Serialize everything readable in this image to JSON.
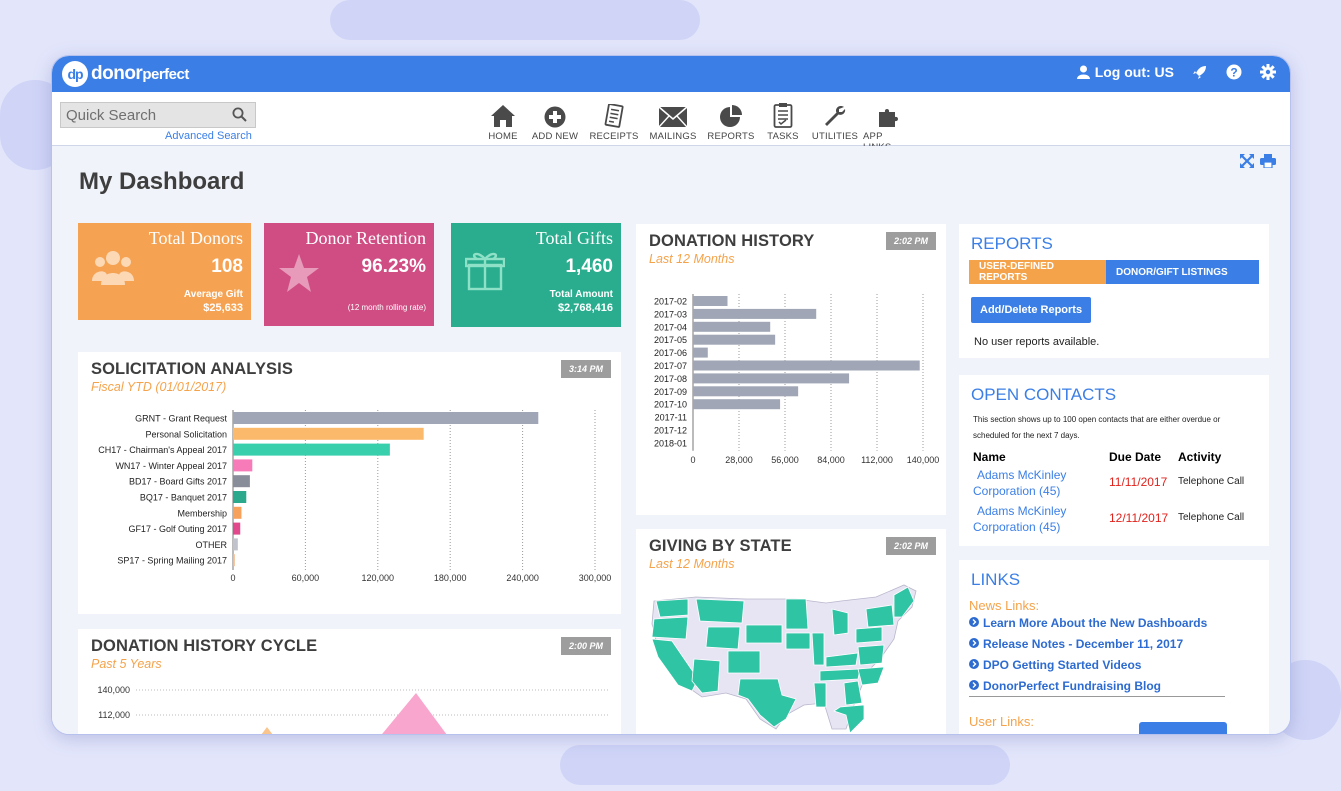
{
  "app": {
    "logo_letters": "dp",
    "logo_text_a": "donor",
    "logo_text_b": "perfect"
  },
  "topbar": {
    "logout_label": "Log out: US",
    "icons": [
      "user-icon",
      "rocket-icon",
      "help-icon",
      "gear-icon"
    ]
  },
  "search": {
    "placeholder": "Quick Search",
    "advanced_label": "Advanced Search"
  },
  "nav": {
    "items": [
      {
        "label": "HOME",
        "icon": "home-icon"
      },
      {
        "label": "ADD NEW",
        "icon": "plus-circle-icon"
      },
      {
        "label": "RECEIPTS",
        "icon": "receipt-icon"
      },
      {
        "label": "MAILINGS",
        "icon": "envelope-icon"
      },
      {
        "label": "REPORTS",
        "icon": "pie-chart-icon"
      },
      {
        "label": "TASKS",
        "icon": "clipboard-icon"
      },
      {
        "label": "UTILITIES",
        "icon": "wrench-icon"
      },
      {
        "label": "APP LINKS",
        "icon": "puzzle-icon"
      }
    ]
  },
  "page": {
    "title": "My Dashboard"
  },
  "stats": {
    "donors": {
      "title": "Total Donors",
      "value": "108",
      "sub1": "Average Gift",
      "sub2": "$25,633",
      "color": "#f5a252"
    },
    "retention": {
      "title": "Donor Retention",
      "value": "96.23%",
      "sub2": "(12 month rolling rate)",
      "color": "#cf4d83"
    },
    "gifts": {
      "title": "Total Gifts",
      "value": "1,460",
      "sub1": "Total Amount",
      "sub2": "$2,768,416",
      "color": "#2aad8e"
    }
  },
  "solicitation": {
    "title": "SOLICITATION ANALYSIS",
    "subtitle": "Fiscal YTD (01/01/2017)",
    "time": "3:14 PM"
  },
  "donation_history": {
    "title": "DONATION HISTORY",
    "subtitle": "Last 12 Months",
    "time": "2:02 PM"
  },
  "giving_by_state": {
    "title": "GIVING BY STATE",
    "subtitle": "Last 12 Months",
    "time": "2:02 PM"
  },
  "history_cycle": {
    "title": "DONATION HISTORY CYCLE",
    "subtitle": "Past 5 Years",
    "time": "2:00 PM",
    "y_ticks": [
      "140,000",
      "112,000"
    ]
  },
  "reports": {
    "title": "REPORTS",
    "tab1": "USER-DEFINED REPORTS",
    "tab2": "DONOR/GIFT LISTINGS",
    "button": "Add/Delete Reports",
    "empty": "No user reports available."
  },
  "contacts": {
    "title": "OPEN CONTACTS",
    "desc1": "This section shows up to 100 open contacts that are either overdue or",
    "desc2": "scheduled for the next 7 days.",
    "col_name": "Name",
    "col_due": "Due Date",
    "col_activity": "Activity",
    "rows": [
      {
        "name1": "Adams McKinley",
        "name2": "Corporation (45)",
        "due": "11/11/2017",
        "activity": "Telephone Call"
      },
      {
        "name1": "Adams McKinley",
        "name2": "Corporation (45)",
        "due": "12/11/2017",
        "activity": "Telephone Call"
      }
    ]
  },
  "links": {
    "title": "LINKS",
    "news_label": "News Links:",
    "items": [
      "Learn More About the New Dashboards",
      "Release Notes - December 11, 2017",
      "DPO Getting Started Videos",
      "DonorPerfect Fundraising Blog"
    ],
    "user_label": "User Links:"
  },
  "colors": {
    "brand": "#3b7fe6",
    "accent_orange": "#f5a34b",
    "bar_gray": "#a0a6b5",
    "map_teal": "#2ec4a4"
  },
  "chart_data": [
    {
      "type": "bar",
      "orientation": "horizontal",
      "title": "SOLICITATION ANALYSIS",
      "categories": [
        "GRNT - Grant Request",
        "Personal Solicitation",
        "CH17 - Chairman's Appeal 2017",
        "WN17 - Winter Appeal 2017",
        "BD17 - Board Gifts 2017",
        "BQ17 - Banquet 2017",
        "Membership",
        "GF17 - Golf Outing 2017",
        "OTHER",
        "SP17 - Spring Mailing 2017"
      ],
      "values": [
        253000,
        158000,
        130000,
        16000,
        14000,
        11000,
        7000,
        6000,
        4000,
        1500
      ],
      "bar_colors": [
        "#a0a6b5",
        "#fbb96b",
        "#37cfac",
        "#f77bb8",
        "#898c99",
        "#2aa98d",
        "#f6a15c",
        "#e1498c",
        "#c0c3cc",
        "#f6b98a"
      ],
      "xlim": [
        0,
        300000
      ],
      "x_ticks": [
        "0",
        "60,000",
        "120,000",
        "180,000",
        "240,000",
        "300,000"
      ]
    },
    {
      "type": "bar",
      "orientation": "horizontal",
      "title": "DONATION HISTORY",
      "categories": [
        "2017-02",
        "2017-03",
        "2017-04",
        "2017-05",
        "2017-06",
        "2017-07",
        "2017-08",
        "2017-09",
        "2017-10",
        "2017-11",
        "2017-12",
        "2018-01"
      ],
      "values": [
        21000,
        75000,
        47000,
        50000,
        9000,
        138000,
        95000,
        64000,
        53000,
        0,
        0,
        0
      ],
      "xlim": [
        0,
        140000
      ],
      "x_ticks": [
        "0",
        "28,000",
        "56,000",
        "84,000",
        "112,000",
        "140,000"
      ]
    }
  ]
}
